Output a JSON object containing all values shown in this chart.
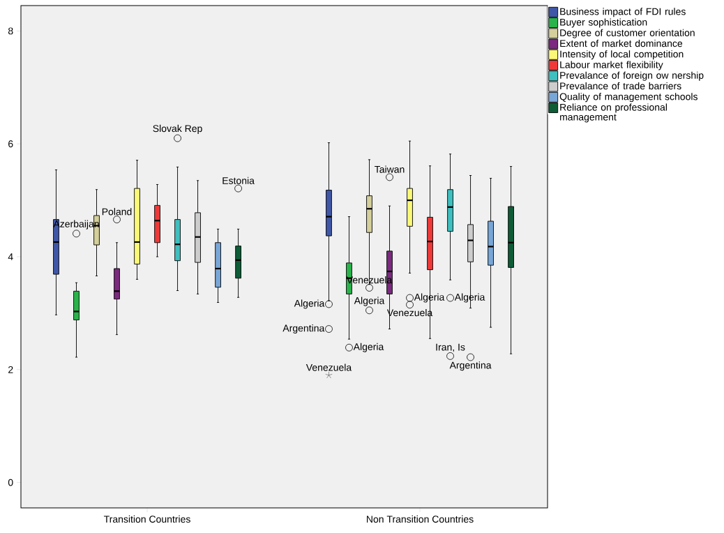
{
  "chart_data": {
    "type": "box",
    "categories": [
      "Transition Countries",
      "Non Transition Countries"
    ],
    "ylim": [
      -0.45,
      8.45
    ],
    "yticks": [
      0,
      2,
      4,
      6,
      8
    ],
    "legend": "right",
    "series": [
      {
        "name": "Business impact of FDI rules",
        "color": "#3f57a6",
        "boxes": [
          {
            "low": 2.97,
            "q1": 3.69,
            "median": 4.26,
            "q3": 4.66,
            "high": 5.54
          },
          {
            "low": 3.22,
            "q1": 4.37,
            "median": 4.71,
            "q3": 5.18,
            "high": 6.02,
            "outliers": [
              3.16,
              2.72,
              1.9
            ]
          }
        ]
      },
      {
        "name": "Buyer sophistication",
        "color": "#2ab34a",
        "boxes": [
          {
            "low": 2.22,
            "q1": 2.88,
            "median": 3.03,
            "q3": 3.39,
            "high": 3.54,
            "outliers": [
              4.41
            ]
          },
          {
            "low": 2.54,
            "q1": 3.34,
            "median": 3.62,
            "q3": 3.89,
            "high": 4.71,
            "outliers": [
              2.39
            ]
          }
        ]
      },
      {
        "name": "Degree of customer orientation",
        "color": "#d4cf9b",
        "boxes": [
          {
            "low": 3.66,
            "q1": 4.21,
            "median": 4.55,
            "q3": 4.73,
            "high": 5.19
          },
          {
            "low": 3.51,
            "q1": 4.43,
            "median": 4.85,
            "q3": 5.08,
            "high": 5.72,
            "outliers": [
              3.45,
              3.05
            ]
          }
        ]
      },
      {
        "name": "Extent of market dominance",
        "color": "#7b2a7f",
        "boxes": [
          {
            "low": 2.62,
            "q1": 3.25,
            "median": 3.39,
            "q3": 3.79,
            "high": 4.25,
            "outliers": [
              4.66
            ]
          },
          {
            "low": 2.72,
            "q1": 3.34,
            "median": 3.74,
            "q3": 4.1,
            "high": 4.9,
            "outliers": [
              5.41
            ]
          }
        ]
      },
      {
        "name": "Intensity of local competition",
        "color": "#fbf878",
        "boxes": [
          {
            "low": 3.6,
            "q1": 3.87,
            "median": 4.26,
            "q3": 5.21,
            "high": 5.71
          },
          {
            "low": 3.71,
            "q1": 4.54,
            "median": 5.0,
            "q3": 5.21,
            "high": 6.05,
            "outliers": [
              3.27,
              3.15
            ]
          }
        ]
      },
      {
        "name": "Labour market flexibility",
        "color": "#ef3939",
        "boxes": [
          {
            "low": 4.0,
            "q1": 4.25,
            "median": 4.64,
            "q3": 4.91,
            "high": 5.28
          },
          {
            "low": 2.55,
            "q1": 3.77,
            "median": 4.27,
            "q3": 4.7,
            "high": 5.61
          }
        ]
      },
      {
        "name": "Prevalance of foreign ow nership",
        "color": "#3fbfbf",
        "boxes": [
          {
            "low": 3.4,
            "q1": 3.93,
            "median": 4.22,
            "q3": 4.66,
            "high": 5.59,
            "outliers": [
              6.1
            ]
          },
          {
            "low": 3.59,
            "q1": 4.45,
            "median": 4.88,
            "q3": 5.19,
            "high": 5.82,
            "outliers": [
              3.27,
              2.24
            ]
          }
        ]
      },
      {
        "name": "Prevalance of trade barriers",
        "color": "#cdcdcd",
        "boxes": [
          {
            "low": 3.34,
            "q1": 3.9,
            "median": 4.35,
            "q3": 4.78,
            "high": 5.35
          },
          {
            "low": 3.09,
            "q1": 3.91,
            "median": 4.29,
            "q3": 4.57,
            "high": 5.44,
            "outliers": [
              2.22
            ]
          }
        ]
      },
      {
        "name": "Quality of management schools",
        "color": "#78a6d6",
        "boxes": [
          {
            "low": 3.19,
            "q1": 3.46,
            "median": 3.79,
            "q3": 4.25,
            "high": 4.49
          },
          {
            "low": 2.75,
            "q1": 3.85,
            "median": 4.18,
            "q3": 4.63,
            "high": 5.39
          }
        ]
      },
      {
        "name": "Reliance on professional management",
        "color": "#0d5c36",
        "boxes": [
          {
            "low": 3.28,
            "q1": 3.62,
            "median": 3.94,
            "q3": 4.19,
            "high": 4.49,
            "outliers": [
              5.21
            ]
          },
          {
            "low": 2.28,
            "q1": 3.81,
            "median": 4.25,
            "q3": 4.89,
            "high": 5.6
          }
        ]
      }
    ],
    "annotations": [
      "Azerbaijan",
      "Poland",
      "Slovak Rep",
      "Estonia",
      "Algeria",
      "Argentina",
      "Venezuela",
      "Algeria",
      "Venezuela",
      "Algeria",
      "Taiwan",
      "Algeria",
      "Venezuela",
      "Algeria",
      "Iran, Is",
      "Argentina"
    ]
  }
}
